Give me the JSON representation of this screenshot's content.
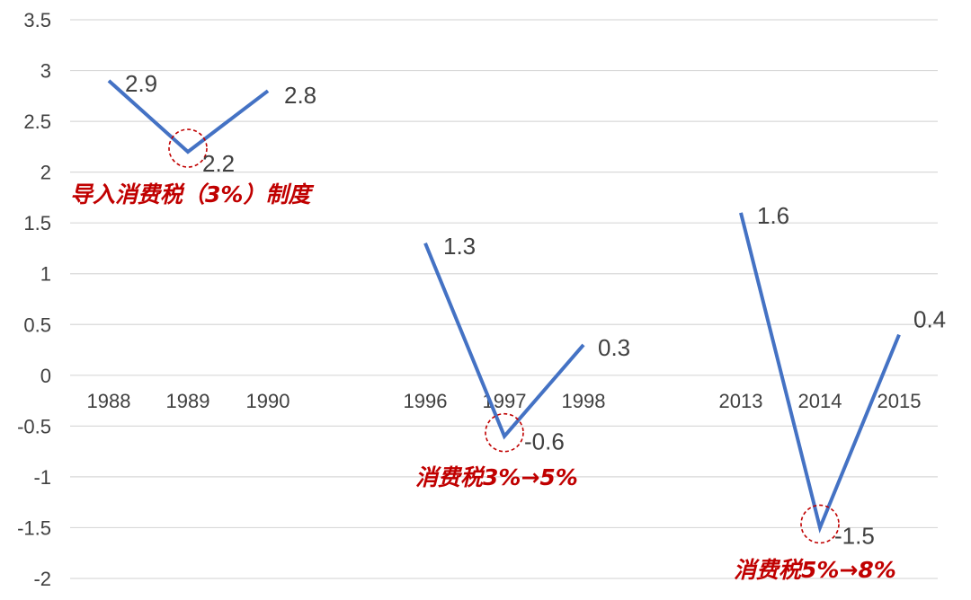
{
  "chart_data": {
    "type": "line",
    "title": "",
    "xlabel": "",
    "ylabel": "",
    "ylim": [
      -2,
      3.5
    ],
    "yticks": [
      3.5,
      3,
      2.5,
      2,
      1.5,
      1,
      0.5,
      0,
      -0.5,
      -1,
      -1.5,
      -2
    ],
    "ytick_labels": [
      "3.5",
      "3",
      "2.5",
      "2",
      "1.5",
      "1",
      "0.5",
      "0",
      "-0.5",
      "-1",
      "-1.5",
      "-2"
    ],
    "grid": true,
    "legend": "none",
    "series_color": "#4472c4",
    "categories": [
      "1988",
      "1989",
      "1990",
      "1996",
      "1997",
      "1998",
      "2013",
      "2014",
      "2015"
    ],
    "segments": [
      {
        "categories": [
          "1988",
          "1989",
          "1990"
        ],
        "values": [
          2.9,
          2.2,
          2.8
        ],
        "value_labels": [
          "2.9",
          "2.2",
          "2.8"
        ],
        "highlight_index": 1,
        "annotation": "导入消费税（3%）制度"
      },
      {
        "categories": [
          "1996",
          "1997",
          "1998"
        ],
        "values": [
          1.3,
          -0.6,
          0.3
        ],
        "value_labels": [
          "1.3",
          "-0.6",
          "0.3"
        ],
        "highlight_index": 1,
        "annotation": "消费税3%→5%"
      },
      {
        "categories": [
          "2013",
          "2014",
          "2015"
        ],
        "values": [
          1.6,
          -1.5,
          0.4
        ],
        "value_labels": [
          "1.6",
          "-1.5",
          "0.4"
        ],
        "highlight_index": 1,
        "annotation": "消费税5%→8%"
      }
    ],
    "annotation_color": "#c00000"
  }
}
